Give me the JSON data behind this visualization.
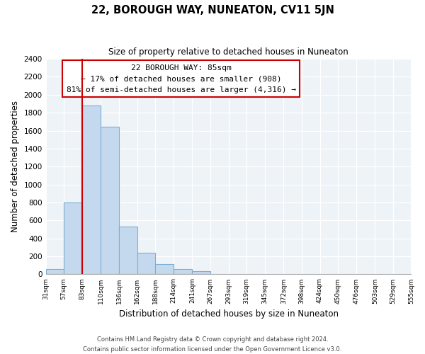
{
  "title": "22, BOROUGH WAY, NUNEATON, CV11 5JN",
  "subtitle": "Size of property relative to detached houses in Nuneaton",
  "xlabel": "Distribution of detached houses by size in Nuneaton",
  "ylabel": "Number of detached properties",
  "bar_edges": [
    31,
    57,
    83,
    110,
    136,
    162,
    188,
    214,
    241,
    267,
    293,
    319,
    345,
    372,
    398,
    424,
    450,
    476,
    503,
    529,
    555
  ],
  "bar_heights": [
    55,
    800,
    1880,
    1640,
    530,
    240,
    110,
    55,
    35,
    0,
    0,
    0,
    0,
    0,
    0,
    0,
    0,
    0,
    0,
    0
  ],
  "bar_color": "#c5d9ee",
  "bar_edge_color": "#7aafd4",
  "property_line_x": 83,
  "property_line_color": "#cc0000",
  "ylim": [
    0,
    2400
  ],
  "yticks": [
    0,
    200,
    400,
    600,
    800,
    1000,
    1200,
    1400,
    1600,
    1800,
    2000,
    2200,
    2400
  ],
  "annotation_title": "22 BOROUGH WAY: 85sqm",
  "annotation_line1": "← 17% of detached houses are smaller (908)",
  "annotation_line2": "81% of semi-detached houses are larger (4,316) →",
  "annotation_box_color": "#ffffff",
  "annotation_box_edge": "#cc0000",
  "footer_line1": "Contains HM Land Registry data © Crown copyright and database right 2024.",
  "footer_line2": "Contains public sector information licensed under the Open Government Licence v3.0.",
  "background_color": "#ffffff",
  "grid_color": "#c8d8e8",
  "tick_labels": [
    "31sqm",
    "57sqm",
    "83sqm",
    "110sqm",
    "136sqm",
    "162sqm",
    "188sqm",
    "214sqm",
    "241sqm",
    "267sqm",
    "293sqm",
    "319sqm",
    "345sqm",
    "372sqm",
    "398sqm",
    "424sqm",
    "450sqm",
    "476sqm",
    "503sqm",
    "529sqm",
    "555sqm"
  ]
}
